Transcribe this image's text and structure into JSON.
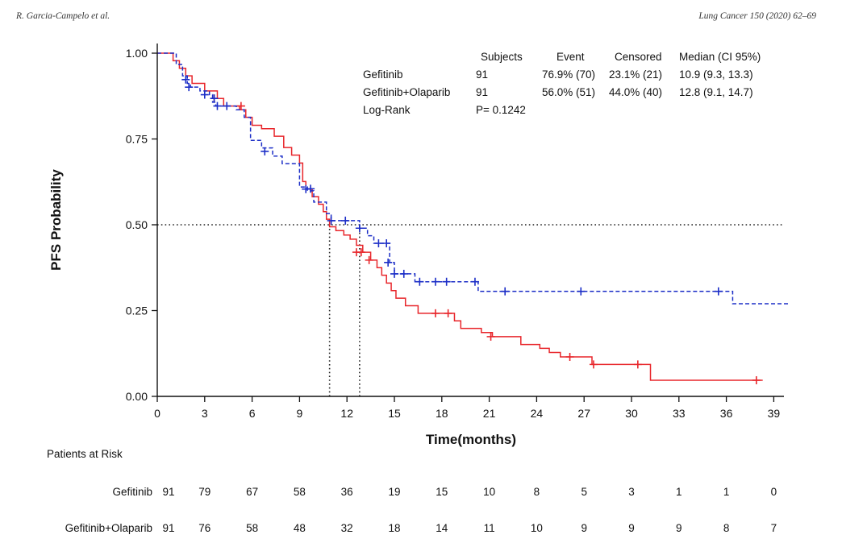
{
  "header": {
    "left": "R. Garcia-Campelo et al.",
    "right": "Lung Cancer 150 (2020) 62–69"
  },
  "chart_data": {
    "type": "line",
    "subtype": "kaplan-meier-step",
    "xlabel": "Time(months)",
    "ylabel": "PFS Probability",
    "xlim": [
      0,
      40
    ],
    "ylim": [
      0,
      1
    ],
    "xticks": [
      0,
      3,
      6,
      9,
      12,
      15,
      18,
      21,
      24,
      27,
      30,
      33,
      36,
      39
    ],
    "yticks": [
      0,
      0.25,
      0.5,
      0.75,
      1
    ],
    "ytick_labels": [
      "0.00",
      "0.25",
      "0.50",
      "0.75",
      "1.00"
    ],
    "reference_lines": [
      {
        "y": 0.5,
        "x_range": [
          0,
          40
        ],
        "style": "dotted"
      },
      {
        "x": 10.9,
        "y_range": [
          0,
          0.5
        ],
        "style": "dotted"
      },
      {
        "x": 12.8,
        "y_range": [
          0,
          0.5
        ],
        "style": "dotted"
      }
    ],
    "series": [
      {
        "name": "Gefitinib",
        "color": "#e8262b",
        "line_style": "solid",
        "steps": [
          [
            0,
            1.0
          ],
          [
            1.0,
            0.978
          ],
          [
            1.4,
            0.956
          ],
          [
            1.8,
            0.934
          ],
          [
            2.2,
            0.912
          ],
          [
            3.0,
            0.89
          ],
          [
            3.8,
            0.868
          ],
          [
            4.2,
            0.846
          ],
          [
            5.2,
            0.835
          ],
          [
            5.6,
            0.813
          ],
          [
            6.0,
            0.79
          ],
          [
            6.6,
            0.78
          ],
          [
            7.4,
            0.758
          ],
          [
            8.0,
            0.725
          ],
          [
            8.5,
            0.703
          ],
          [
            9.0,
            0.68
          ],
          [
            9.2,
            0.626
          ],
          [
            9.4,
            0.604
          ],
          [
            9.8,
            0.582
          ],
          [
            10.2,
            0.56
          ],
          [
            10.5,
            0.538
          ],
          [
            10.7,
            0.516
          ],
          [
            10.9,
            0.494
          ],
          [
            11.3,
            0.483
          ],
          [
            11.8,
            0.47
          ],
          [
            12.2,
            0.458
          ],
          [
            12.6,
            0.44
          ],
          [
            13.0,
            0.42
          ],
          [
            13.5,
            0.397
          ],
          [
            13.9,
            0.375
          ],
          [
            14.2,
            0.353
          ],
          [
            14.5,
            0.33
          ],
          [
            14.8,
            0.308
          ],
          [
            15.1,
            0.286
          ],
          [
            15.7,
            0.264
          ],
          [
            16.5,
            0.242
          ],
          [
            17.0,
            0.242
          ],
          [
            18.8,
            0.22
          ],
          [
            19.2,
            0.198
          ],
          [
            20.5,
            0.186
          ],
          [
            21.2,
            0.174
          ],
          [
            22.5,
            0.174
          ],
          [
            23.0,
            0.151
          ],
          [
            24.2,
            0.14
          ],
          [
            24.8,
            0.128
          ],
          [
            25.5,
            0.115
          ],
          [
            27.5,
            0.093
          ],
          [
            31.2,
            0.047
          ],
          [
            38.3,
            0.047
          ]
        ],
        "censor_marks": [
          [
            3.6,
            0.868
          ],
          [
            5.3,
            0.846
          ],
          [
            12.6,
            0.42
          ],
          [
            12.9,
            0.42
          ],
          [
            13.4,
            0.397
          ],
          [
            17.6,
            0.242
          ],
          [
            18.4,
            0.242
          ],
          [
            21.1,
            0.174
          ],
          [
            26.1,
            0.115
          ],
          [
            27.6,
            0.093
          ],
          [
            30.4,
            0.093
          ],
          [
            37.9,
            0.047
          ]
        ]
      },
      {
        "name": "Gefitinib+Olaparib",
        "color": "#1c2ec7",
        "line_style": "dashed",
        "steps": [
          [
            0,
            1.0
          ],
          [
            1.2,
            0.967
          ],
          [
            1.6,
            0.934
          ],
          [
            1.9,
            0.912
          ],
          [
            2.1,
            0.901
          ],
          [
            2.7,
            0.89
          ],
          [
            3.3,
            0.879
          ],
          [
            3.5,
            0.857
          ],
          [
            3.7,
            0.846
          ],
          [
            5.0,
            0.835
          ],
          [
            5.5,
            0.813
          ],
          [
            5.9,
            0.746
          ],
          [
            6.6,
            0.724
          ],
          [
            7.3,
            0.7
          ],
          [
            7.9,
            0.678
          ],
          [
            9.0,
            0.61
          ],
          [
            9.5,
            0.599
          ],
          [
            9.9,
            0.566
          ],
          [
            10.7,
            0.533
          ],
          [
            11.0,
            0.512
          ],
          [
            12.8,
            0.49
          ],
          [
            13.3,
            0.468
          ],
          [
            13.7,
            0.446
          ],
          [
            14.7,
            0.39
          ],
          [
            15.0,
            0.357
          ],
          [
            16.3,
            0.334
          ],
          [
            20.3,
            0.306
          ],
          [
            36.4,
            0.27
          ],
          [
            40,
            0.27
          ]
        ],
        "censor_marks": [
          [
            1.8,
            0.923
          ],
          [
            2.0,
            0.901
          ],
          [
            3.0,
            0.879
          ],
          [
            3.6,
            0.868
          ],
          [
            3.8,
            0.846
          ],
          [
            4.4,
            0.846
          ],
          [
            6.8,
            0.714
          ],
          [
            9.4,
            0.604
          ],
          [
            9.7,
            0.605
          ],
          [
            11.0,
            0.512
          ],
          [
            11.9,
            0.512
          ],
          [
            12.8,
            0.49
          ],
          [
            14.0,
            0.446
          ],
          [
            14.5,
            0.446
          ],
          [
            14.6,
            0.39
          ],
          [
            15.0,
            0.357
          ],
          [
            15.6,
            0.357
          ],
          [
            16.6,
            0.334
          ],
          [
            17.6,
            0.334
          ],
          [
            18.3,
            0.334
          ],
          [
            20.1,
            0.334
          ],
          [
            22.0,
            0.306
          ],
          [
            26.8,
            0.306
          ],
          [
            35.5,
            0.306
          ]
        ]
      }
    ],
    "summary_table": {
      "headers": [
        "Subjects",
        "Event",
        "Censored",
        "Median (CI 95%)"
      ],
      "rows": [
        {
          "label": "Gefitinib",
          "subjects": "91",
          "event": "76.9% (70)",
          "censored": "23.1% (21)",
          "median": "10.9 (9.3, 13.3)"
        },
        {
          "label": "Gefitinib+Olaparib",
          "subjects": "91",
          "event": "56.0% (51)",
          "censored": "44.0% (40)",
          "median": "12.8 (9.1, 14.7)"
        }
      ],
      "logrank_label": "Log-Rank",
      "logrank_value": "P= 0.1242"
    },
    "risk_table": {
      "title": "Patients at Risk",
      "times": [
        0,
        3,
        6,
        9,
        12,
        15,
        18,
        21,
        24,
        27,
        30,
        33,
        36,
        39
      ],
      "rows": [
        {
          "label": "Gefitinib",
          "values": [
            "91",
            "79",
            "67",
            "58",
            "36",
            "19",
            "15",
            "10",
            "8",
            "5",
            "3",
            "1",
            "1",
            "0"
          ]
        },
        {
          "label": "Gefitinib+Olaparib",
          "values": [
            "91",
            "76",
            "58",
            "48",
            "32",
            "18",
            "14",
            "11",
            "10",
            "9",
            "9",
            "9",
            "8",
            "7"
          ]
        }
      ]
    }
  }
}
